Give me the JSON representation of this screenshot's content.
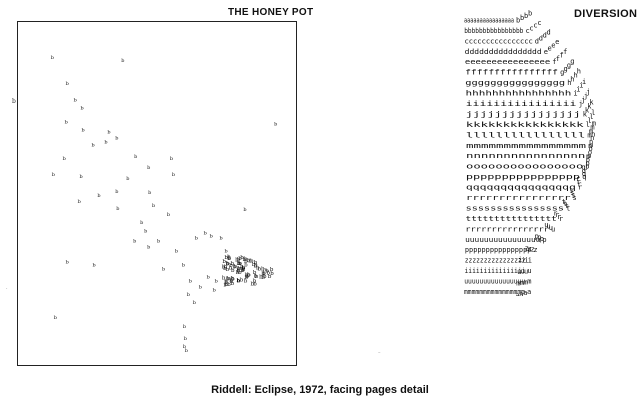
{
  "left_panel": {
    "title": "THE HONEY POT",
    "glyph": "b",
    "stray_marks": [
      "b"
    ]
  },
  "right_panel": {
    "title": "DIVERSION",
    "letters": [
      "a",
      "b",
      "c",
      "d",
      "e",
      "f",
      "g",
      "h",
      "i",
      "j",
      "k",
      "l",
      "m",
      "n",
      "o",
      "p",
      "q",
      "r",
      "s",
      "t",
      "r",
      "u",
      "p",
      "z",
      "i",
      "u",
      "m"
    ],
    "repeat_count": 16
  },
  "caption": "Riddell: Eclipse, 1972, facing pages detail",
  "colors": {
    "ink": "#111111",
    "frame": "#222222",
    "paper": "#ffffff"
  }
}
